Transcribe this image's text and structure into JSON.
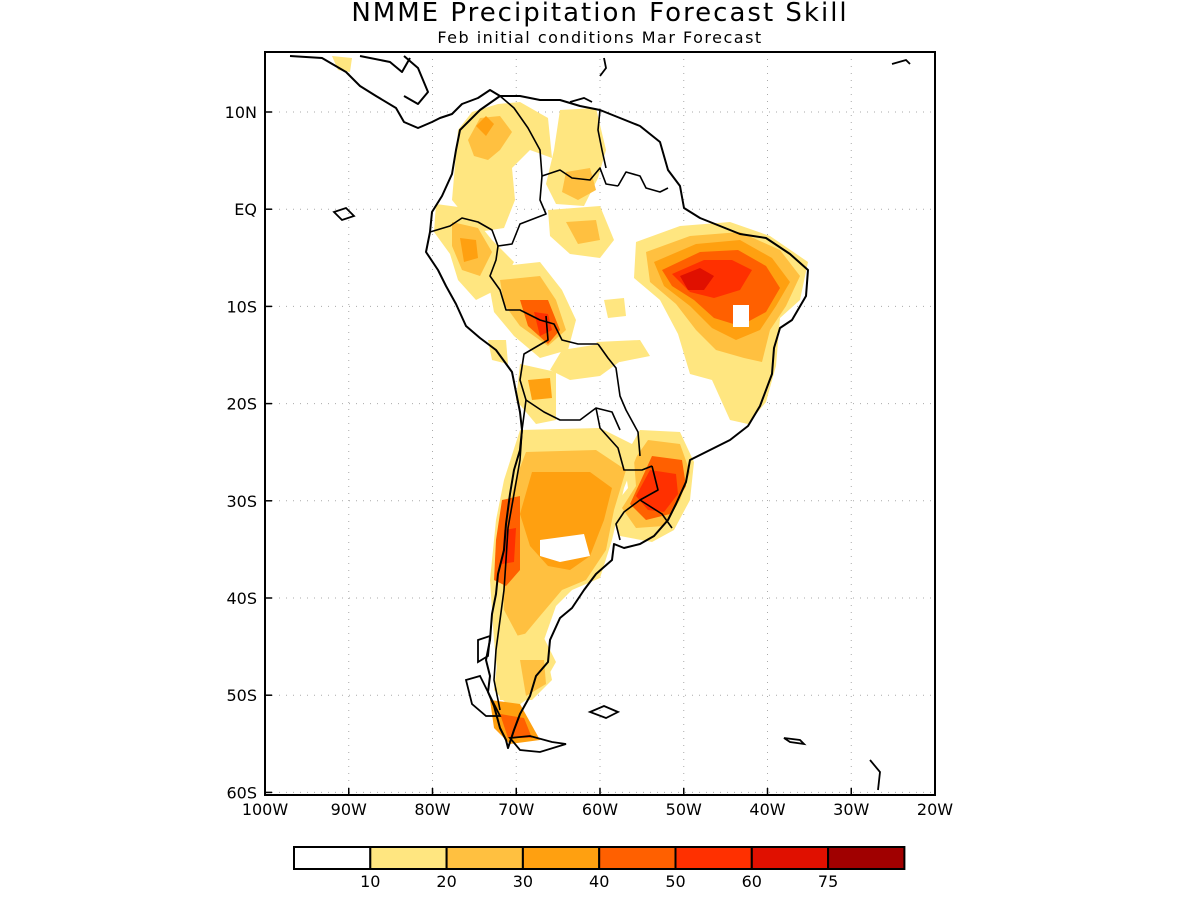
{
  "header": {
    "title": "NMME Precipitation Forecast Skill",
    "subtitle": "Feb initial conditions  Mar Forecast"
  },
  "map": {
    "region": "South America",
    "lon_range": [
      -100,
      -20
    ],
    "lat_range": [
      -60,
      15
    ],
    "lon_ticks": [
      {
        "value": -100,
        "label": "100W"
      },
      {
        "value": -90,
        "label": "90W"
      },
      {
        "value": -80,
        "label": "80W"
      },
      {
        "value": -70,
        "label": "70W"
      },
      {
        "value": -60,
        "label": "60W"
      },
      {
        "value": -50,
        "label": "50W"
      },
      {
        "value": -40,
        "label": "40W"
      },
      {
        "value": -30,
        "label": "30W"
      },
      {
        "value": -20,
        "label": "20W"
      }
    ],
    "lat_ticks": [
      {
        "value": 10,
        "label": "10N"
      },
      {
        "value": 0,
        "label": "EQ"
      },
      {
        "value": -10,
        "label": "10S"
      },
      {
        "value": -20,
        "label": "20S"
      },
      {
        "value": -30,
        "label": "30S"
      },
      {
        "value": -40,
        "label": "40S"
      },
      {
        "value": -50,
        "label": "50S"
      },
      {
        "value": -60,
        "label": "60S"
      }
    ],
    "grid": true
  },
  "colorbar": {
    "labels": [
      "10",
      "20",
      "30",
      "40",
      "50",
      "60",
      "75"
    ],
    "colors": [
      "#ffffff",
      "#ffe680",
      "#ffc040",
      "#ffa010",
      "#ff6000",
      "#ff3000",
      "#e01000",
      "#a00000"
    ]
  }
}
